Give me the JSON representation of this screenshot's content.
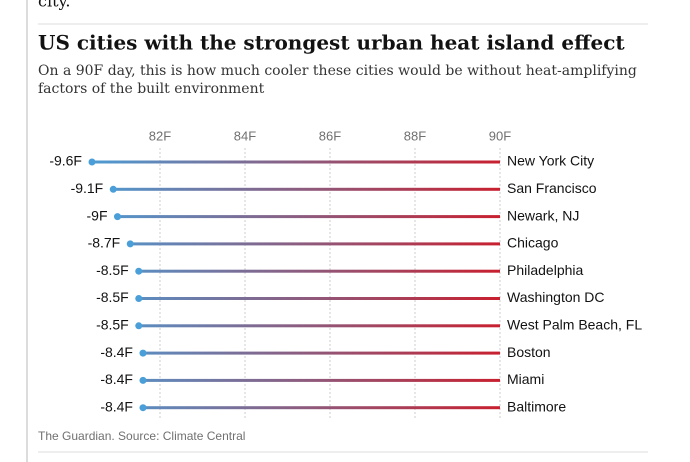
{
  "article_text_above": "city.\"",
  "chart_data": {
    "type": "dumbbell",
    "title": "US cities with the strongest urban heat island effect",
    "subtitle": "On a 90F day, this is how much cooler these cities would be without heat-amplifying factors of the built environment",
    "categories": [
      "New York City",
      "San Francisco",
      "Newark, NJ",
      "Chicago",
      "Philadelphia",
      "Washington DC",
      "West Palm Beach, FL",
      "Boston",
      "Miami",
      "Baltimore"
    ],
    "values": [
      -9.6,
      -9.1,
      -9,
      -8.7,
      -8.5,
      -8.5,
      -8.5,
      -8.4,
      -8.4,
      -8.4
    ],
    "value_labels": [
      "-9.6F",
      "-9.1F",
      "-9F",
      "-8.7F",
      "-8.5F",
      "-8.5F",
      "-8.5F",
      "-8.4F",
      "-8.4F",
      "-8.4F"
    ],
    "xlim": [
      -10,
      0
    ],
    "xticks": [
      {
        "value": -8,
        "label": "82F"
      },
      {
        "value": -6,
        "label": "84F"
      },
      {
        "value": -4,
        "label": "86F"
      },
      {
        "value": -2,
        "label": "88F"
      },
      {
        "value": 0,
        "label": "90F"
      }
    ],
    "colors": [
      "#4a9fd8",
      "#c8202f"
    ],
    "grid": true,
    "source": "The Guardian. Source: Climate Central"
  }
}
